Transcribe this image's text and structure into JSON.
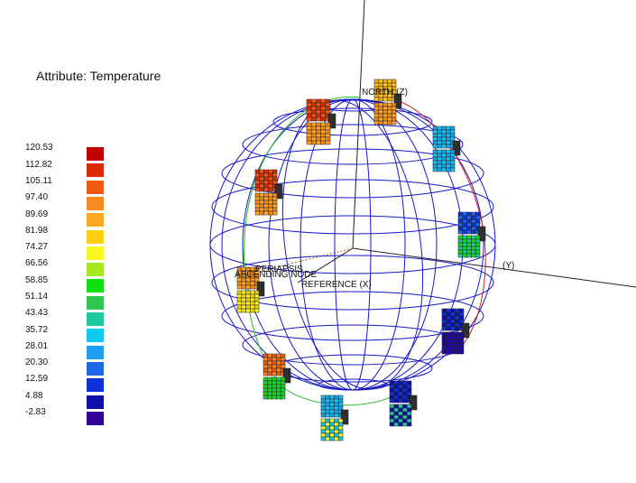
{
  "attribute_title": "Attribute: Temperature",
  "legend": [
    {
      "label": "120.53",
      "color": "#c00000"
    },
    {
      "label": "112.82",
      "color": "#dc2a08"
    },
    {
      "label": "105.11",
      "color": "#f05a10"
    },
    {
      "label": "97.40",
      "color": "#f88820"
    },
    {
      "label": "89.69",
      "color": "#fca820"
    },
    {
      "label": "81.98",
      "color": "#fcd010"
    },
    {
      "label": "74.27",
      "color": "#f8f820"
    },
    {
      "label": "66.56",
      "color": "#a8e820"
    },
    {
      "label": "58.85",
      "color": "#10e010"
    },
    {
      "label": "51.14",
      "color": "#30c850"
    },
    {
      "label": "43.43",
      "color": "#20c8a0"
    },
    {
      "label": "35.72",
      "color": "#10c8f0"
    },
    {
      "label": "28.01",
      "color": "#20a0f0"
    },
    {
      "label": "20.30",
      "color": "#2068e8"
    },
    {
      "label": "12.59",
      "color": "#1030d8"
    },
    {
      "label": "4.88",
      "color": "#1010a8"
    },
    {
      "label": "-2.83",
      "color": "#300098"
    }
  ],
  "axes": {
    "north": "NORTH (Z)",
    "y": "(Y)",
    "reference": "REFERENCE (X)",
    "periapsis": "PERIAPSIS",
    "ascending_node": "ASCENDING NODE"
  }
}
